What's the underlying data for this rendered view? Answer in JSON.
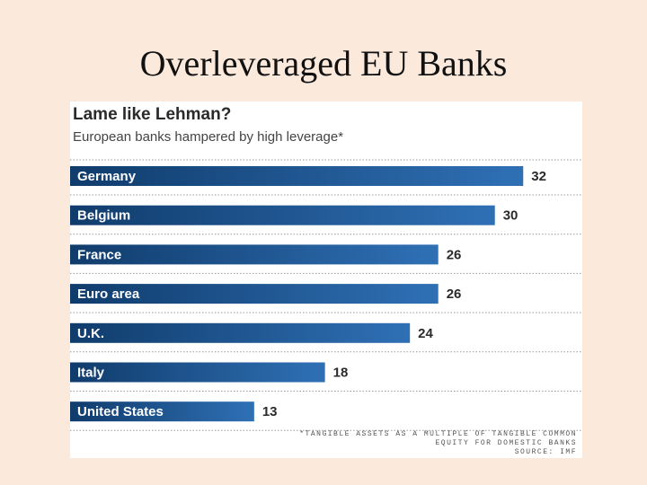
{
  "slide": {
    "title": "Overleveraged EU Banks"
  },
  "chart_data": {
    "type": "bar",
    "orientation": "horizontal",
    "title": "Lame like Lehman?",
    "subtitle": "European banks hampered by high leverage*",
    "categories": [
      "Germany",
      "Belgium",
      "France",
      "Euro area",
      "U.K.",
      "Italy",
      "United States"
    ],
    "values": [
      32,
      30,
      26,
      26,
      24,
      18,
      13
    ],
    "xlim": [
      0,
      33
    ],
    "grid": "dotted row separators",
    "legend": "none",
    "footnote_lines": [
      "*TANGIBLE ASSETS AS A MULTIPLE OF TANGIBLE COMMON",
      "EQUITY FOR DOMESTIC BANKS",
      "SOURCE: IMF"
    ],
    "colors": {
      "bar_start": "#103c6c",
      "bar_end": "#2f70b5",
      "background": "#fbe9dc",
      "panel": "#ffffff"
    }
  }
}
